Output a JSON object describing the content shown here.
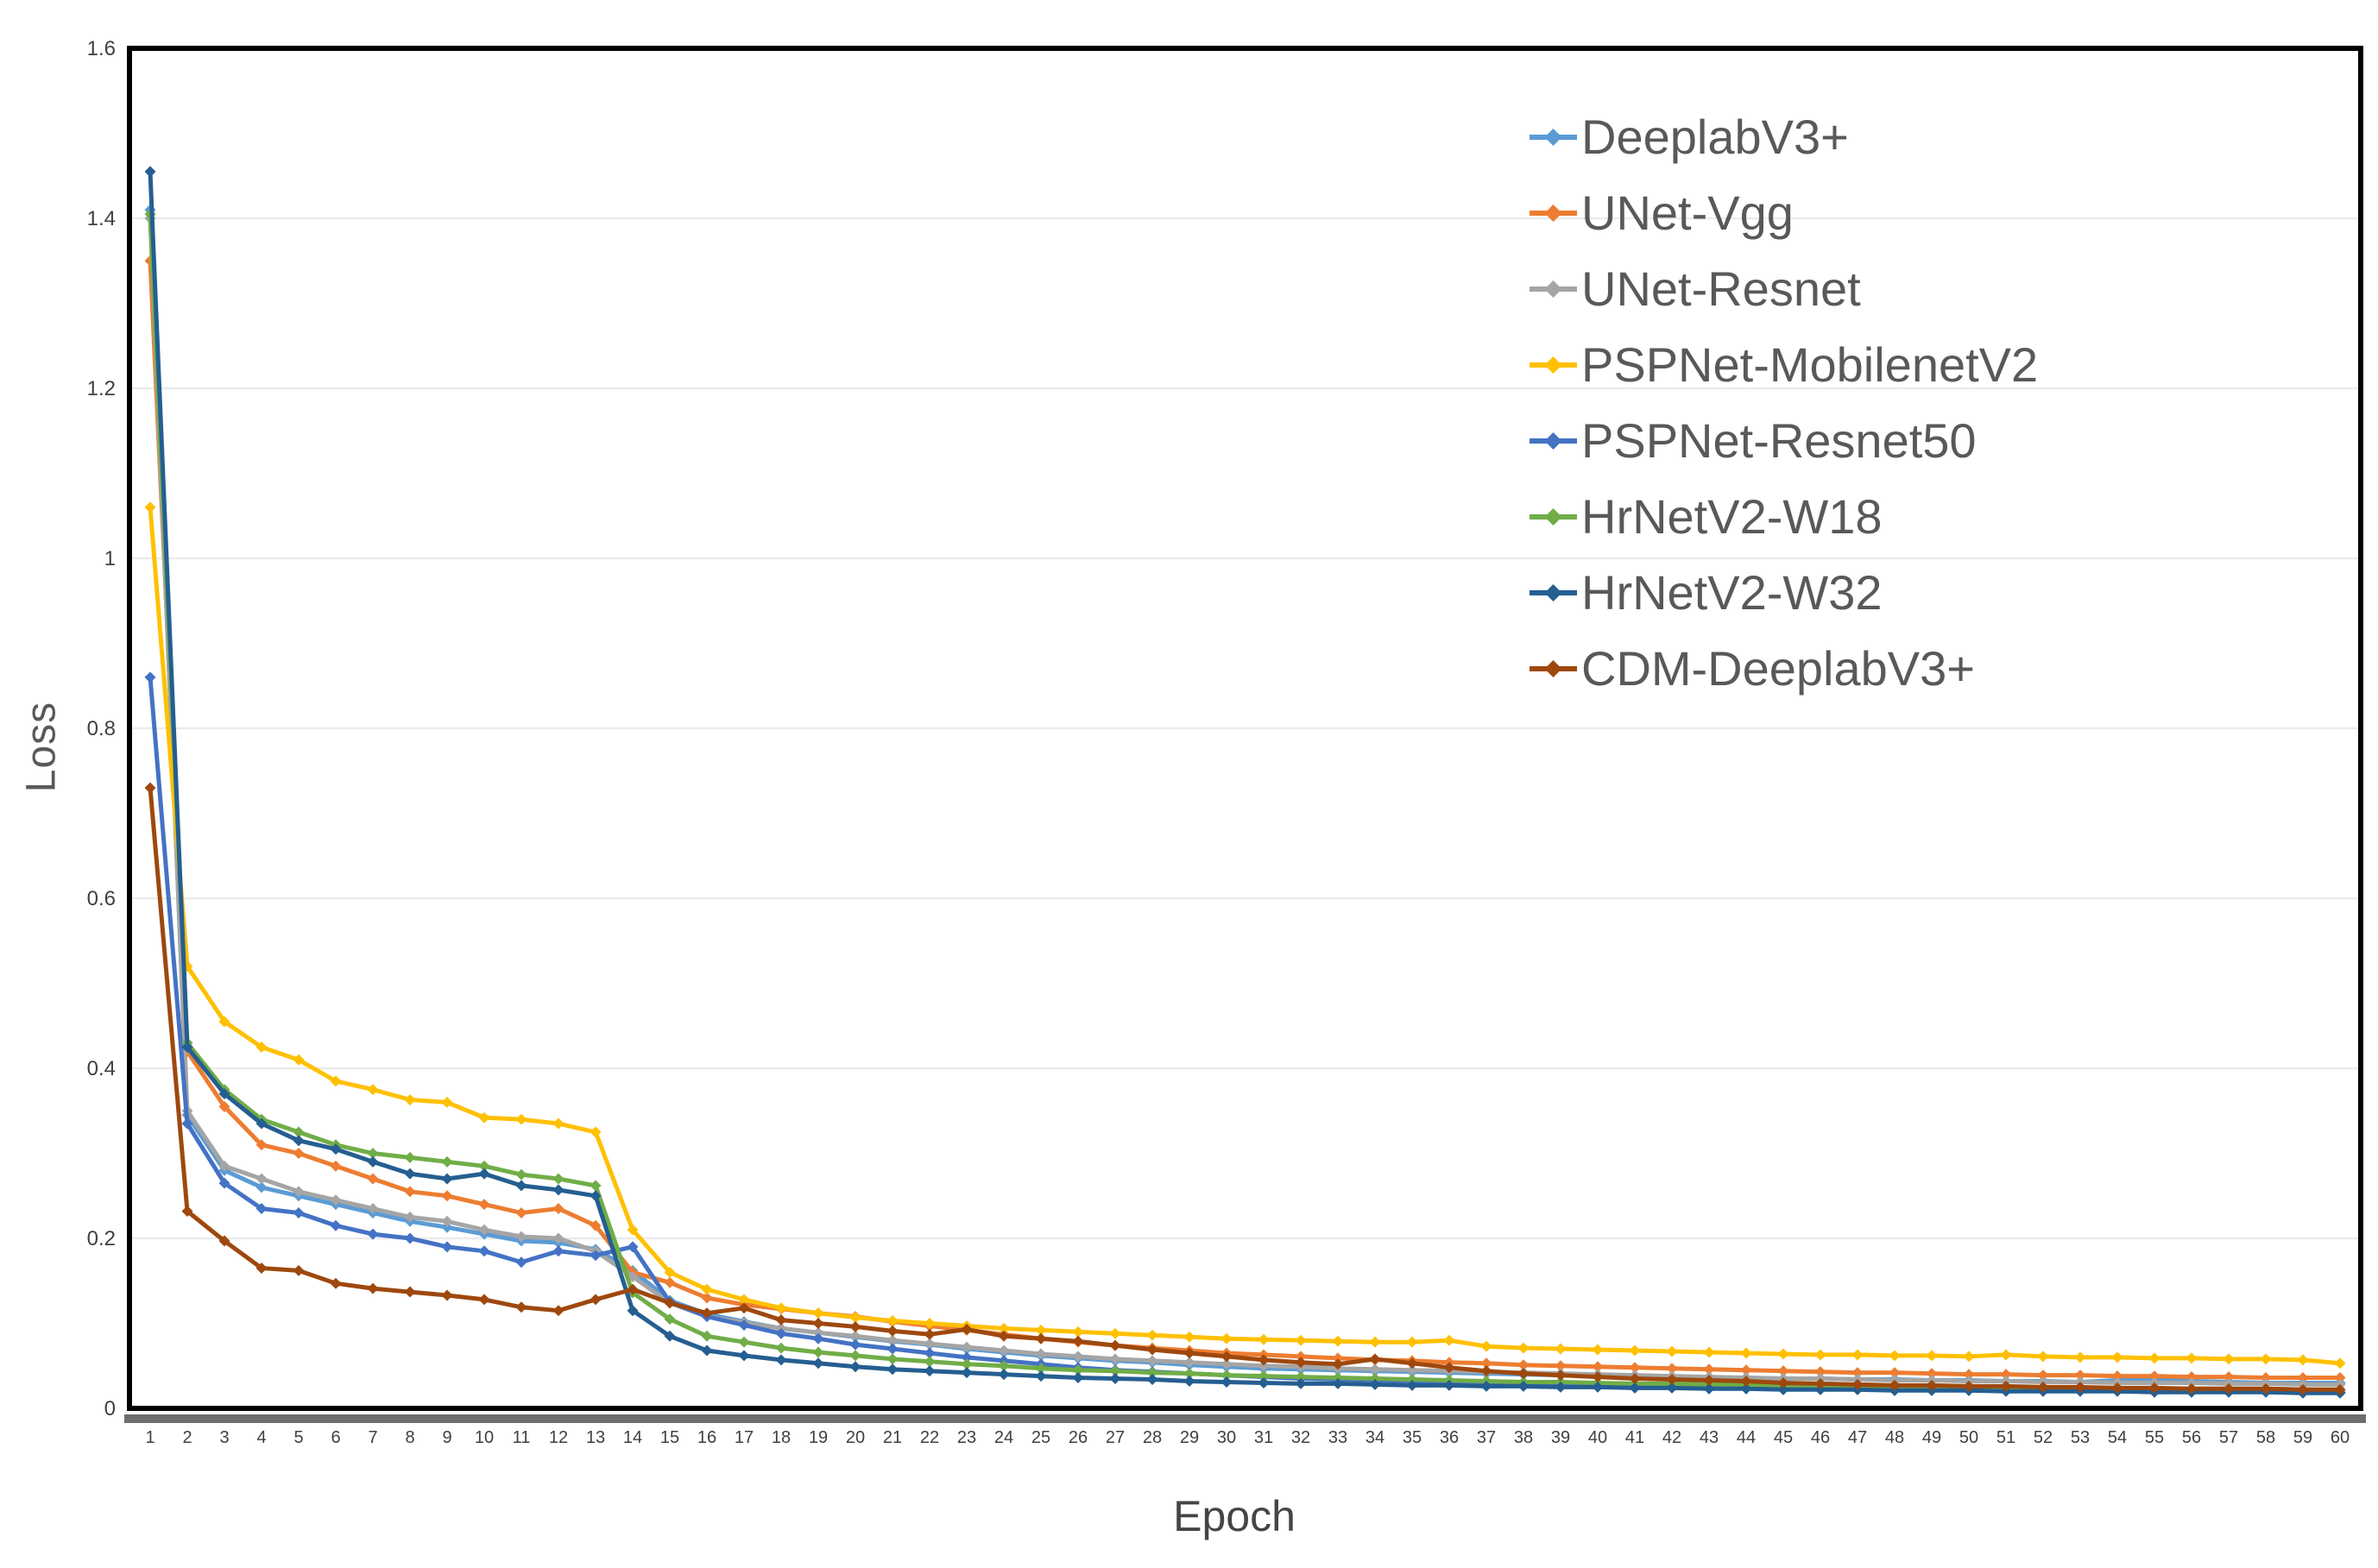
{
  "figure": {
    "background": "#ffffff",
    "plot_border_color": "#000000",
    "axis_band_color": "#6e6e6e",
    "gridline_color": "#ebebeb",
    "tick_label_color": "#404040",
    "legend_text_color": "#595959"
  },
  "chart_data": {
    "type": "line",
    "title": "",
    "xlabel": "Epoch",
    "ylabel": "Loss",
    "ylim": [
      0,
      1.6
    ],
    "grid": "horizontal",
    "legend_position": "upper-right",
    "y_ticks": [
      {
        "value": 1.6,
        "label": "1.6"
      },
      {
        "value": 1.4,
        "label": "1.4"
      },
      {
        "value": 1.2,
        "label": "1.2"
      },
      {
        "value": 1.0,
        "label": "1"
      },
      {
        "value": 0.8,
        "label": "0.8"
      },
      {
        "value": 0.6,
        "label": "0.6"
      },
      {
        "value": 0.4,
        "label": "0.4"
      },
      {
        "value": 0.2,
        "label": "0.2"
      },
      {
        "value": 0.0,
        "label": "0"
      }
    ],
    "x": [
      1,
      2,
      3,
      4,
      5,
      6,
      7,
      8,
      9,
      10,
      11,
      12,
      13,
      14,
      15,
      16,
      17,
      18,
      19,
      20,
      21,
      22,
      23,
      24,
      25,
      26,
      27,
      28,
      29,
      30,
      31,
      32,
      33,
      34,
      35,
      36,
      37,
      38,
      39,
      40,
      41,
      42,
      43,
      44,
      45,
      46,
      47,
      48,
      49,
      50,
      51,
      52,
      53,
      54,
      55,
      56,
      57,
      58,
      59,
      60
    ],
    "series": [
      {
        "name": "DeeplabV3+",
        "color": "#5B9BD5",
        "values": [
          1.41,
          0.345,
          0.28,
          0.26,
          0.25,
          0.24,
          0.23,
          0.22,
          0.213,
          0.205,
          0.197,
          0.195,
          0.187,
          0.162,
          0.127,
          0.111,
          0.102,
          0.094,
          0.089,
          0.084,
          0.079,
          0.075,
          0.07,
          0.066,
          0.062,
          0.059,
          0.056,
          0.054,
          0.051,
          0.049,
          0.047,
          0.046,
          0.045,
          0.044,
          0.043,
          0.042,
          0.041,
          0.04,
          0.039,
          0.038,
          0.038,
          0.037,
          0.036,
          0.036,
          0.035,
          0.035,
          0.034,
          0.034,
          0.033,
          0.033,
          0.032,
          0.032,
          0.031,
          0.033,
          0.035,
          0.032,
          0.031,
          0.03,
          0.03,
          0.03
        ]
      },
      {
        "name": "UNet-Vgg",
        "color": "#ED7D31",
        "values": [
          1.35,
          0.42,
          0.355,
          0.31,
          0.3,
          0.285,
          0.27,
          0.255,
          0.25,
          0.24,
          0.23,
          0.235,
          0.215,
          0.16,
          0.148,
          0.13,
          0.122,
          0.117,
          0.112,
          0.108,
          0.102,
          0.097,
          0.092,
          0.087,
          0.082,
          0.078,
          0.074,
          0.071,
          0.068,
          0.065,
          0.063,
          0.061,
          0.059,
          0.057,
          0.056,
          0.054,
          0.053,
          0.051,
          0.05,
          0.049,
          0.048,
          0.047,
          0.046,
          0.045,
          0.044,
          0.043,
          0.042,
          0.042,
          0.041,
          0.04,
          0.04,
          0.039,
          0.039,
          0.038,
          0.038,
          0.037,
          0.037,
          0.036,
          0.036,
          0.036
        ]
      },
      {
        "name": "UNet-Resnet",
        "color": "#A5A5A5",
        "values": [
          1.4,
          0.35,
          0.285,
          0.27,
          0.255,
          0.245,
          0.235,
          0.225,
          0.22,
          0.21,
          0.202,
          0.2,
          0.185,
          0.155,
          0.124,
          0.108,
          0.101,
          0.094,
          0.089,
          0.085,
          0.08,
          0.076,
          0.072,
          0.068,
          0.064,
          0.061,
          0.058,
          0.056,
          0.054,
          0.052,
          0.05,
          0.049,
          0.047,
          0.046,
          0.045,
          0.044,
          0.043,
          0.042,
          0.041,
          0.04,
          0.039,
          0.038,
          0.037,
          0.036,
          0.035,
          0.035,
          0.034,
          0.033,
          0.033,
          0.032,
          0.032,
          0.031,
          0.031,
          0.03,
          0.03,
          0.03,
          0.029,
          0.029,
          0.028,
          0.028
        ]
      },
      {
        "name": "PSPNet-MobilenetV2",
        "color": "#FFC000",
        "values": [
          1.06,
          0.52,
          0.455,
          0.425,
          0.41,
          0.385,
          0.375,
          0.363,
          0.36,
          0.342,
          0.34,
          0.335,
          0.325,
          0.21,
          0.16,
          0.14,
          0.128,
          0.118,
          0.112,
          0.107,
          0.103,
          0.1,
          0.097,
          0.094,
          0.092,
          0.09,
          0.088,
          0.086,
          0.084,
          0.082,
          0.081,
          0.08,
          0.079,
          0.078,
          0.078,
          0.08,
          0.073,
          0.071,
          0.07,
          0.069,
          0.068,
          0.067,
          0.066,
          0.065,
          0.064,
          0.063,
          0.063,
          0.062,
          0.062,
          0.061,
          0.063,
          0.061,
          0.06,
          0.06,
          0.059,
          0.059,
          0.058,
          0.058,
          0.057,
          0.053
        ]
      },
      {
        "name": "PSPNet-Resnet50",
        "color": "#4472C4",
        "values": [
          0.86,
          0.335,
          0.265,
          0.235,
          0.23,
          0.215,
          0.205,
          0.2,
          0.19,
          0.185,
          0.172,
          0.185,
          0.18,
          0.19,
          0.125,
          0.108,
          0.098,
          0.088,
          0.082,
          0.075,
          0.07,
          0.065,
          0.06,
          0.056,
          0.052,
          0.048,
          0.045,
          0.043,
          0.041,
          0.039,
          0.037,
          0.035,
          0.034,
          0.033,
          0.032,
          0.031,
          0.03,
          0.029,
          0.028,
          0.028,
          0.027,
          0.026,
          0.026,
          0.025,
          0.025,
          0.024,
          0.024,
          0.023,
          0.023,
          0.022,
          0.022,
          0.022,
          0.021,
          0.021,
          0.021,
          0.02,
          0.02,
          0.02,
          0.02,
          0.019
        ]
      },
      {
        "name": "HrNetV2-W18",
        "color": "#70AD47",
        "values": [
          1.405,
          0.43,
          0.375,
          0.34,
          0.325,
          0.31,
          0.3,
          0.295,
          0.29,
          0.285,
          0.275,
          0.27,
          0.262,
          0.136,
          0.105,
          0.085,
          0.078,
          0.071,
          0.066,
          0.062,
          0.058,
          0.055,
          0.052,
          0.05,
          0.047,
          0.045,
          0.044,
          0.042,
          0.041,
          0.039,
          0.038,
          0.037,
          0.036,
          0.035,
          0.034,
          0.033,
          0.032,
          0.031,
          0.031,
          0.03,
          0.029,
          0.029,
          0.028,
          0.028,
          0.027,
          0.027,
          0.026,
          0.026,
          0.025,
          0.025,
          0.025,
          0.024,
          0.024,
          0.024,
          0.023,
          0.023,
          0.023,
          0.023,
          0.022,
          0.022
        ]
      },
      {
        "name": "HrNetV2-W32",
        "color": "#255E91",
        "values": [
          1.455,
          0.425,
          0.37,
          0.335,
          0.315,
          0.305,
          0.29,
          0.276,
          0.27,
          0.276,
          0.262,
          0.257,
          0.25,
          0.115,
          0.085,
          0.068,
          0.062,
          0.057,
          0.053,
          0.049,
          0.046,
          0.044,
          0.042,
          0.04,
          0.038,
          0.036,
          0.035,
          0.034,
          0.032,
          0.031,
          0.03,
          0.029,
          0.029,
          0.028,
          0.027,
          0.027,
          0.026,
          0.026,
          0.025,
          0.025,
          0.024,
          0.024,
          0.023,
          0.023,
          0.022,
          0.022,
          0.022,
          0.021,
          0.021,
          0.021,
          0.02,
          0.02,
          0.02,
          0.02,
          0.019,
          0.019,
          0.019,
          0.019,
          0.018,
          0.018
        ]
      },
      {
        "name": "CDM-DeeplabV3+",
        "color": "#9E480E",
        "values": [
          0.73,
          0.232,
          0.197,
          0.165,
          0.162,
          0.147,
          0.141,
          0.137,
          0.133,
          0.128,
          0.119,
          0.115,
          0.128,
          0.14,
          0.124,
          0.112,
          0.118,
          0.104,
          0.1,
          0.096,
          0.091,
          0.087,
          0.093,
          0.085,
          0.082,
          0.079,
          0.074,
          0.069,
          0.065,
          0.061,
          0.057,
          0.054,
          0.052,
          0.058,
          0.053,
          0.048,
          0.044,
          0.041,
          0.039,
          0.037,
          0.035,
          0.034,
          0.033,
          0.032,
          0.03,
          0.029,
          0.028,
          0.027,
          0.027,
          0.026,
          0.026,
          0.025,
          0.025,
          0.024,
          0.024,
          0.023,
          0.023,
          0.023,
          0.022,
          0.022
        ]
      }
    ]
  }
}
